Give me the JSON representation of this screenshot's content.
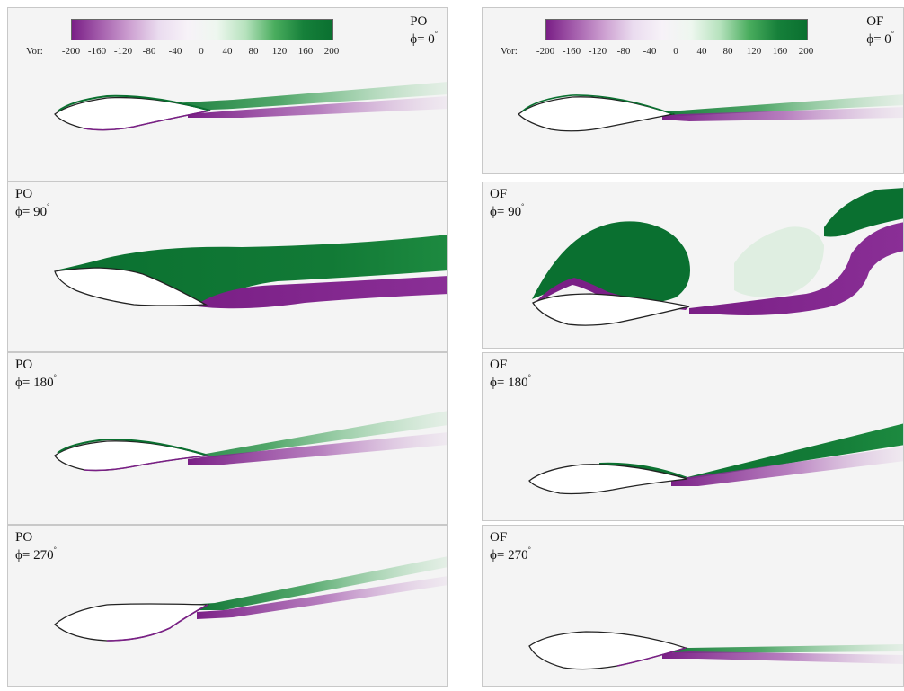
{
  "figure": {
    "colorbar": {
      "label": "Vor:",
      "ticks": [
        "-200",
        "-160",
        "-120",
        "-80",
        "-40",
        "0",
        "40",
        "80",
        "120",
        "160",
        "200"
      ],
      "range": [
        -200,
        200
      ],
      "colors": {
        "negative": "#7a1f86",
        "zero": "#f7f2f8",
        "positive": "#0a7030"
      }
    },
    "panels": [
      {
        "id": "po-0",
        "case": "PO",
        "phase": "ϕ= 0",
        "degree": "°"
      },
      {
        "id": "of-0",
        "case": "OF",
        "phase": "ϕ= 0",
        "degree": "°"
      },
      {
        "id": "po-90",
        "case": "PO",
        "phase": "ϕ= 90",
        "degree": "°"
      },
      {
        "id": "of-90",
        "case": "OF",
        "phase": "ϕ= 90",
        "degree": "°"
      },
      {
        "id": "po-180",
        "case": "PO",
        "phase": "ϕ= 180",
        "degree": "°"
      },
      {
        "id": "of-180",
        "case": "OF",
        "phase": "ϕ= 180",
        "degree": "°"
      },
      {
        "id": "po-270",
        "case": "PO",
        "phase": "ϕ= 270",
        "degree": "°"
      },
      {
        "id": "of-270",
        "case": "OF",
        "phase": "ϕ= 270",
        "degree": "°"
      }
    ]
  }
}
